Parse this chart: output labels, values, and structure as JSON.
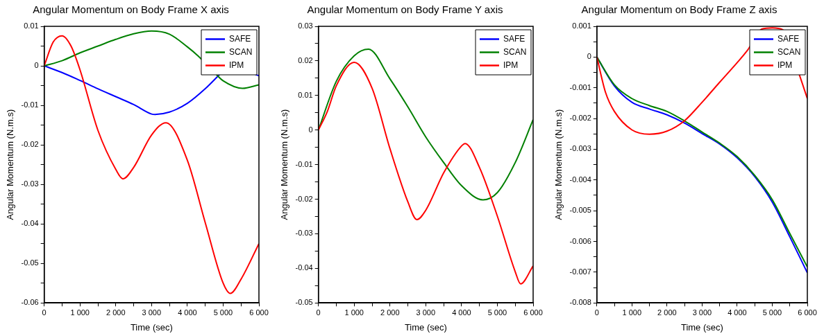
{
  "chart_data": [
    {
      "type": "line",
      "title": "Angular Momentum on Body Frame X axis",
      "xlabel": "Time (sec)",
      "ylabel": "Angular Momentum (N.m.s)",
      "legend": "top right",
      "xlim": [
        0,
        6000
      ],
      "ylim": [
        -0.06,
        0.01
      ],
      "xticks": [
        {
          "value": 0,
          "label": "0"
        },
        {
          "value": 500,
          "label": null
        },
        {
          "value": 1000,
          "label": "1 000"
        },
        {
          "value": 1500,
          "label": null
        },
        {
          "value": 2000,
          "label": "2 000"
        },
        {
          "value": 2500,
          "label": null
        },
        {
          "value": 3000,
          "label": "3 000"
        },
        {
          "value": 3500,
          "label": null
        },
        {
          "value": 4000,
          "label": "4 000"
        },
        {
          "value": 4500,
          "label": null
        },
        {
          "value": 5000,
          "label": "5 000"
        },
        {
          "value": 5500,
          "label": null
        },
        {
          "value": 6000,
          "label": "6 000"
        }
      ],
      "yticks": [
        -0.06,
        {
          "value": -0.055,
          "label": null
        },
        -0.05,
        {
          "value": -0.045,
          "label": null
        },
        -0.04,
        {
          "value": -0.035,
          "label": null
        },
        -0.03,
        {
          "value": -0.025,
          "label": null
        },
        -0.02,
        {
          "value": -0.015,
          "label": null
        },
        -0.01,
        {
          "value": -0.005,
          "label": null
        },
        0,
        {
          "value": 0.005,
          "label": null
        },
        0.01
      ],
      "series": [
        {
          "name": "SAFE",
          "color": "#0000ff",
          "x": [
            0,
            500,
            1000,
            1500,
            2000,
            2500,
            3000,
            3100,
            3500,
            4000,
            4500,
            4900,
            5500,
            5900,
            6000
          ],
          "values": [
            0,
            -0.0017,
            -0.0037,
            -0.0058,
            -0.0078,
            -0.0098,
            -0.0122,
            -0.0123,
            -0.0117,
            -0.0095,
            -0.0058,
            -0.0022,
            null,
            -0.0022,
            -0.0025
          ]
        },
        {
          "name": "SCAN",
          "color": "#008000",
          "x": [
            0,
            500,
            1000,
            1500,
            2000,
            2500,
            3000,
            3500,
            4000,
            4300,
            4820,
            5000,
            5540,
            6000
          ],
          "values": [
            0,
            0.0013,
            0.0033,
            0.005,
            0.0067,
            0.0081,
            0.0088,
            0.008,
            0.0048,
            0.0025,
            -0.0023,
            -0.0038,
            -0.0057,
            -0.0048
          ]
        },
        {
          "name": "IPM",
          "color": "#ff0000",
          "x": [
            0,
            250,
            500,
            750,
            1000,
            1500,
            2000,
            2200,
            2500,
            3000,
            3400,
            4000,
            4500,
            5000,
            5200,
            5500,
            6000
          ],
          "values": [
            0,
            0.006,
            0.0076,
            0.005,
            -0.001,
            -0.0163,
            -0.0262,
            -0.0286,
            -0.0257,
            -0.0175,
            -0.0144,
            -0.0239,
            -0.0397,
            -0.055,
            -0.0576,
            -0.054,
            -0.045
          ]
        }
      ]
    },
    {
      "type": "line",
      "title": "Angular Momentum on Body Frame Y axis",
      "xlabel": "Time (sec)",
      "ylabel": "Angular Momentum (N.m.s)",
      "legend": "top right",
      "xlim": [
        0,
        6000
      ],
      "ylim": [
        -0.05,
        0.03
      ],
      "xticks": [
        {
          "value": 0,
          "label": "0"
        },
        {
          "value": 500,
          "label": null
        },
        {
          "value": 1000,
          "label": "1 000"
        },
        {
          "value": 1500,
          "label": null
        },
        {
          "value": 2000,
          "label": "2 000"
        },
        {
          "value": 2500,
          "label": null
        },
        {
          "value": 3000,
          "label": "3 000"
        },
        {
          "value": 3500,
          "label": null
        },
        {
          "value": 4000,
          "label": "4 000"
        },
        {
          "value": 4500,
          "label": null
        },
        {
          "value": 5000,
          "label": "5 000"
        },
        {
          "value": 5500,
          "label": null
        },
        {
          "value": 6000,
          "label": "6 000"
        }
      ],
      "yticks": [
        -0.05,
        {
          "value": -0.045,
          "label": null
        },
        -0.04,
        {
          "value": -0.035,
          "label": null
        },
        -0.03,
        {
          "value": -0.025,
          "label": null
        },
        -0.02,
        {
          "value": -0.015,
          "label": null
        },
        -0.01,
        {
          "value": -0.005,
          "label": null
        },
        0,
        {
          "value": 0.005,
          "label": null
        },
        0.01,
        {
          "value": 0.015,
          "label": null
        },
        0.02,
        {
          "value": 0.025,
          "label": null
        },
        0.03
      ],
      "series": [
        {
          "name": "SAFE",
          "color": "#0000ff",
          "values": [
            null
          ]
        },
        {
          "name": "SCAN",
          "color": "#008000",
          "x": [
            0,
            500,
            1000,
            1400,
            2000,
            2500,
            3000,
            3500,
            4000,
            4600,
            5000,
            5500,
            6000
          ],
          "values": [
            0,
            0.0141,
            0.0215,
            0.0234,
            0.0148,
            0.0067,
            -0.002,
            -0.0094,
            -0.0161,
            -0.0202,
            -0.0181,
            -0.0094,
            0.003
          ]
        },
        {
          "name": "IPM",
          "color": "#ff0000",
          "x": [
            0,
            250,
            500,
            1000,
            1500,
            2000,
            2500,
            2750,
            3000,
            3500,
            4000,
            4100,
            4500,
            5000,
            5500,
            5650,
            6000
          ],
          "values": [
            0,
            0.0054,
            0.0128,
            0.0196,
            0.0121,
            -0.0054,
            -0.0208,
            -0.0259,
            -0.0232,
            -0.0124,
            -0.0046,
            -0.0039,
            -0.0108,
            -0.0249,
            -0.041,
            -0.0445,
            -0.0393
          ]
        }
      ]
    },
    {
      "type": "line",
      "title": "Angular Momentum on Body Frame Z axis",
      "xlabel": "Time (sec)",
      "ylabel": "Angular Momentum (N.m.s)",
      "legend": "top right",
      "xlim": [
        0,
        6000
      ],
      "ylim": [
        -0.008,
        0.001
      ],
      "xticks": [
        {
          "value": 0,
          "label": "0"
        },
        {
          "value": 500,
          "label": null
        },
        {
          "value": 1000,
          "label": "1 000"
        },
        {
          "value": 1500,
          "label": null
        },
        {
          "value": 2000,
          "label": "2 000"
        },
        {
          "value": 2500,
          "label": null
        },
        {
          "value": 3000,
          "label": "3 000"
        },
        {
          "value": 3500,
          "label": null
        },
        {
          "value": 4000,
          "label": "4 000"
        },
        {
          "value": 4500,
          "label": null
        },
        {
          "value": 5000,
          "label": "5 000"
        },
        {
          "value": 5500,
          "label": null
        },
        {
          "value": 6000,
          "label": "6 000"
        }
      ],
      "yticks": [
        -0.008,
        {
          "value": -0.0075,
          "label": null
        },
        -0.007,
        {
          "value": -0.0065,
          "label": null
        },
        -0.006,
        {
          "value": -0.0055,
          "label": null
        },
        -0.005,
        {
          "value": -0.0045,
          "label": null
        },
        -0.004,
        {
          "value": -0.0035,
          "label": null
        },
        -0.003,
        {
          "value": -0.0025,
          "label": null
        },
        -0.002,
        {
          "value": -0.0015,
          "label": null
        },
        -0.001,
        {
          "value": -0.0005,
          "label": null
        },
        0,
        {
          "value": 0.0005,
          "label": null
        },
        0.001
      ],
      "series": [
        {
          "name": "SAFE",
          "color": "#0000ff",
          "x": [
            0,
            500,
            1000,
            1500,
            2000,
            2500,
            3000,
            3500,
            4000,
            4500,
            5000,
            5500,
            6000
          ],
          "values": [
            0,
            -0.00094,
            -0.00147,
            -0.00169,
            -0.00188,
            -0.00215,
            -0.00249,
            -0.00283,
            -0.00328,
            -0.00389,
            -0.00472,
            -0.00585,
            -0.00702
          ]
        },
        {
          "name": "SCAN",
          "color": "#008000",
          "x": [
            0,
            500,
            1000,
            1500,
            2000,
            2500,
            3000,
            3500,
            4000,
            4500,
            5000,
            5500,
            6000
          ],
          "values": [
            0,
            -0.0009,
            -0.00135,
            -0.00158,
            -0.00177,
            -0.00208,
            -0.00244,
            -0.0028,
            -0.00324,
            -0.00385,
            -0.00464,
            -0.00574,
            -0.00683
          ]
        },
        {
          "name": "IPM",
          "color": "#ff0000",
          "x": [
            0,
            250,
            500,
            1000,
            1500,
            2000,
            2500,
            3000,
            3500,
            4000,
            4300,
            4700,
            5000,
            5300,
            5770,
            6000
          ],
          "values": [
            0,
            -0.00116,
            -0.00177,
            -0.00237,
            -0.00251,
            -0.00241,
            -0.00207,
            -0.00147,
            -0.00082,
            -0.00018,
            0.00023,
            0.00091,
            0.00095,
            0.00089,
            -0.00057,
            -0.00135
          ]
        }
      ]
    }
  ]
}
